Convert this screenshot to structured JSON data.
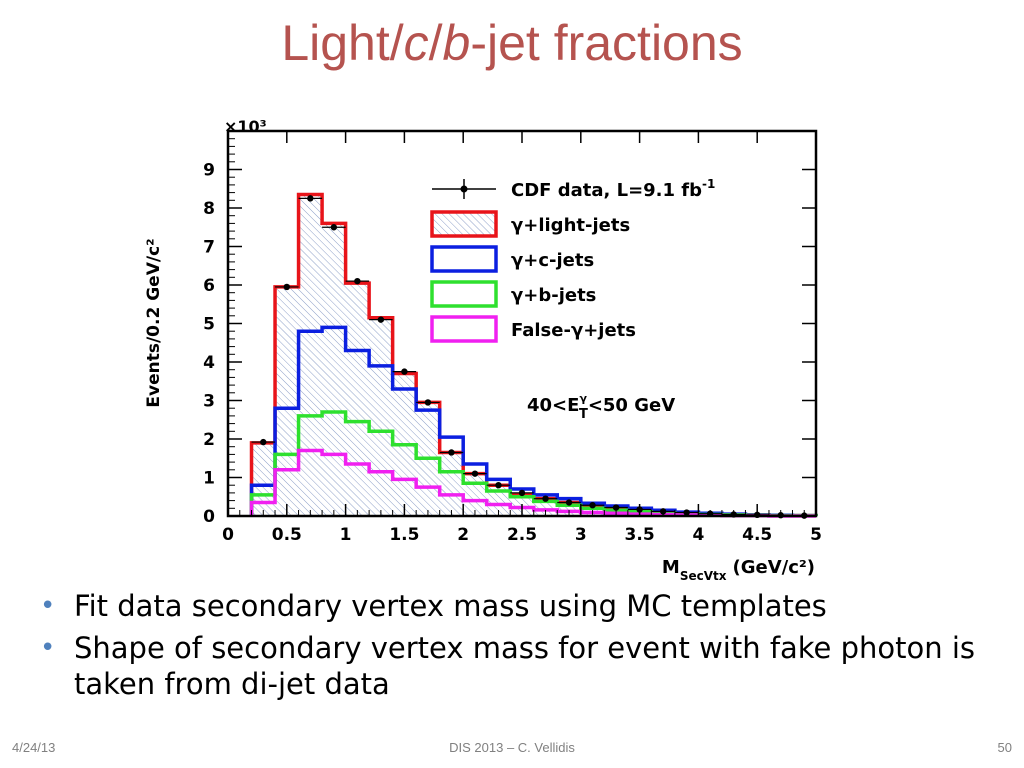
{
  "slide": {
    "title_parts": [
      "Light/",
      "c",
      "/",
      "b",
      "-jet fractions"
    ],
    "bullets": [
      "Fit data secondary vertex mass using MC templates",
      "Shape of secondary vertex mass for event with fake photon is taken from di-jet data"
    ],
    "footer": {
      "date": "4/24/13",
      "center": "DIS 2013 – C. Vellidis",
      "page": "50"
    }
  },
  "chart_data": {
    "type": "histogram",
    "xlabel": "M",
    "xlabel_sub": "SecVtx",
    "xlabel_unit": "(GeV/c²)",
    "ylabel": "Events/0.2 GeV/c²",
    "y_multiplier": "×10³",
    "xlim": [
      0,
      5
    ],
    "ylim": [
      0,
      10
    ],
    "x_ticks": [
      "0",
      "0.5",
      "1",
      "1.5",
      "2",
      "2.5",
      "3",
      "3.5",
      "4",
      "4.5",
      "5"
    ],
    "y_ticks": [
      "0",
      "1",
      "2",
      "3",
      "4",
      "5",
      "6",
      "7",
      "8",
      "9"
    ],
    "bin_edges": [
      0.2,
      0.4,
      0.6,
      0.8,
      1.0,
      1.2,
      1.4,
      1.6,
      1.8,
      2.0,
      2.2,
      2.4,
      2.6,
      2.8,
      3.0,
      3.2,
      3.4,
      3.6,
      3.8,
      4.0,
      4.2,
      4.4,
      4.6,
      4.8,
      5.0
    ],
    "annotation": "40<E",
    "annotation_sup": "γ",
    "annotation_sub": "T",
    "annotation_rest": "<50 GeV",
    "series": [
      {
        "name": "γ+light-jets",
        "color": "#e8141a",
        "hatched": true,
        "values": [
          1.9,
          5.95,
          8.35,
          7.6,
          6.05,
          5.15,
          3.7,
          2.95,
          1.65,
          1.1,
          0.8,
          0.55,
          0.45,
          0.35,
          0.28,
          0.22,
          0.17,
          0.12,
          0.09,
          0.06,
          0.04,
          0.03,
          0.02,
          0.01
        ]
      },
      {
        "name": "γ+c-jets",
        "color": "#0b1fe0",
        "values": [
          0.8,
          2.8,
          4.8,
          4.9,
          4.3,
          3.9,
          3.3,
          2.75,
          2.05,
          1.35,
          0.95,
          0.7,
          0.55,
          0.45,
          0.33,
          0.26,
          0.2,
          0.15,
          0.1,
          0.07,
          0.05,
          0.03,
          0.02,
          0.01
        ]
      },
      {
        "name": "γ+b-jets",
        "color": "#2ee02e",
        "values": [
          0.55,
          1.6,
          2.6,
          2.7,
          2.45,
          2.2,
          1.85,
          1.5,
          1.15,
          0.85,
          0.65,
          0.5,
          0.38,
          0.28,
          0.2,
          0.15,
          0.11,
          0.08,
          0.06,
          0.04,
          0.03,
          0.02,
          0.01,
          0.01
        ]
      },
      {
        "name": "False-γ+jets",
        "color": "#f020f0",
        "values": [
          0.35,
          1.2,
          1.7,
          1.6,
          1.35,
          1.15,
          0.95,
          0.75,
          0.55,
          0.4,
          0.3,
          0.22,
          0.16,
          0.12,
          0.09,
          0.07,
          0.05,
          0.04,
          0.03,
          0.02,
          0.01,
          0.01,
          0.0,
          0.0
        ]
      }
    ],
    "data_points": {
      "name": "CDF data, L=9.1 fb",
      "name_sup": "-1",
      "color": "#000000",
      "x": [
        0.3,
        0.5,
        0.7,
        0.9,
        1.1,
        1.3,
        1.5,
        1.7,
        1.9,
        2.1,
        2.3,
        2.5,
        2.7,
        2.9,
        3.1,
        3.3,
        3.5,
        3.7,
        3.9,
        4.1,
        4.3,
        4.5,
        4.7,
        4.9
      ],
      "y": [
        1.92,
        5.95,
        8.25,
        7.5,
        6.1,
        5.1,
        3.75,
        2.95,
        1.65,
        1.1,
        0.8,
        0.6,
        0.45,
        0.35,
        0.28,
        0.22,
        0.17,
        0.12,
        0.09,
        0.06,
        0.04,
        0.03,
        0.02,
        0.01
      ]
    },
    "legend_position": "top-right"
  }
}
